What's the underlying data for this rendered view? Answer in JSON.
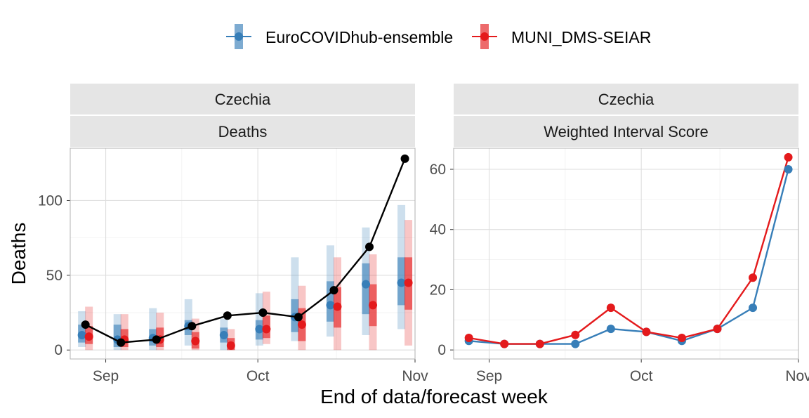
{
  "legend": {
    "items": [
      {
        "label": "EuroCOVIDhub-ensemble",
        "color": "#377EB8"
      },
      {
        "label": "MUNI_DMS-SEIAR",
        "color": "#E41A1C"
      }
    ]
  },
  "xlabel": "End of data/forecast week",
  "chart_data": [
    {
      "type": "line",
      "strip_top": "Czechia",
      "strip_bottom": "Deaths",
      "ylabel": "Deaths",
      "xlim": [
        "2021-08-25",
        "2021-11-01"
      ],
      "ylim": [
        -6,
        135
      ],
      "x_ticks": [
        {
          "date": "2021-09-01",
          "label": "Sep"
        },
        {
          "date": "2021-10-01",
          "label": "Oct"
        },
        {
          "date": "2021-11-01",
          "label": "Nov"
        }
      ],
      "y_ticks": [
        {
          "value": 0,
          "label": "0"
        },
        {
          "value": 50,
          "label": "50"
        },
        {
          "value": 100,
          "label": "100"
        }
      ],
      "observed": {
        "x": [
          "2021-08-28",
          "2021-09-04",
          "2021-09-11",
          "2021-09-18",
          "2021-09-25",
          "2021-10-02",
          "2021-10-09",
          "2021-10-16",
          "2021-10-23",
          "2021-10-30"
        ],
        "y": [
          17,
          5,
          7,
          16,
          23,
          25,
          22,
          40,
          69,
          128
        ]
      },
      "forecasts": [
        {
          "model": "EuroCOVIDhub-ensemble",
          "x": [
            "2021-08-28",
            "2021-09-04",
            "2021-09-11",
            "2021-09-18",
            "2021-09-25",
            "2021-10-02",
            "2021-10-09",
            "2021-10-16",
            "2021-10-23",
            "2021-10-30"
          ],
          "median": [
            10,
            7,
            8,
            16,
            10,
            14,
            22,
            30,
            44,
            45
          ],
          "lower50": [
            5,
            2,
            3,
            10,
            5,
            7,
            12,
            19,
            24,
            30
          ],
          "upper50": [
            17,
            17,
            14,
            20,
            15,
            20,
            34,
            46,
            58,
            62
          ],
          "lower90": [
            2,
            0,
            0,
            3,
            0,
            3,
            6,
            9,
            10,
            14
          ],
          "upper90": [
            26,
            24,
            28,
            34,
            21,
            38,
            62,
            70,
            82,
            97
          ]
        },
        {
          "model": "MUNI_DMS-SEIAR",
          "x": [
            "2021-08-28",
            "2021-09-04",
            "2021-09-11",
            "2021-09-18",
            "2021-09-25",
            "2021-10-02",
            "2021-10-09",
            "2021-10-16",
            "2021-10-23",
            "2021-10-30"
          ],
          "median": [
            9,
            7,
            7,
            6,
            3,
            14,
            17,
            29,
            30,
            45
          ],
          "lower50": [
            4,
            2,
            2,
            1,
            0,
            8,
            6,
            15,
            16,
            27
          ],
          "upper50": [
            16,
            14,
            15,
            12,
            8,
            23,
            28,
            42,
            44,
            62
          ],
          "lower90": [
            0,
            0,
            0,
            0,
            0,
            4,
            0,
            0,
            0,
            3
          ],
          "upper90": [
            29,
            24,
            25,
            21,
            14,
            39,
            43,
            62,
            64,
            87
          ]
        }
      ]
    },
    {
      "type": "line",
      "strip_top": "Czechia",
      "strip_bottom": "Weighted Interval Score",
      "xlim": [
        "2021-08-25",
        "2021-11-01"
      ],
      "ylim": [
        -3,
        67
      ],
      "x_ticks": [
        {
          "date": "2021-09-01",
          "label": "Sep"
        },
        {
          "date": "2021-10-01",
          "label": "Oct"
        },
        {
          "date": "2021-11-01",
          "label": "Nov"
        }
      ],
      "y_ticks": [
        {
          "value": 0,
          "label": "0"
        },
        {
          "value": 20,
          "label": "20"
        },
        {
          "value": 40,
          "label": "40"
        },
        {
          "value": 60,
          "label": "60"
        }
      ],
      "x": [
        "2021-08-28",
        "2021-09-04",
        "2021-09-11",
        "2021-09-18",
        "2021-09-25",
        "2021-10-02",
        "2021-10-09",
        "2021-10-16",
        "2021-10-23",
        "2021-10-30"
      ],
      "series": [
        {
          "name": "EuroCOVIDhub-ensemble",
          "values": [
            3,
            2,
            2,
            2,
            7,
            6,
            3,
            7,
            14,
            60
          ]
        },
        {
          "name": "MUNI_DMS-SEIAR",
          "values": [
            4,
            2,
            2,
            5,
            14,
            6,
            4,
            7,
            24,
            64
          ]
        }
      ]
    }
  ]
}
